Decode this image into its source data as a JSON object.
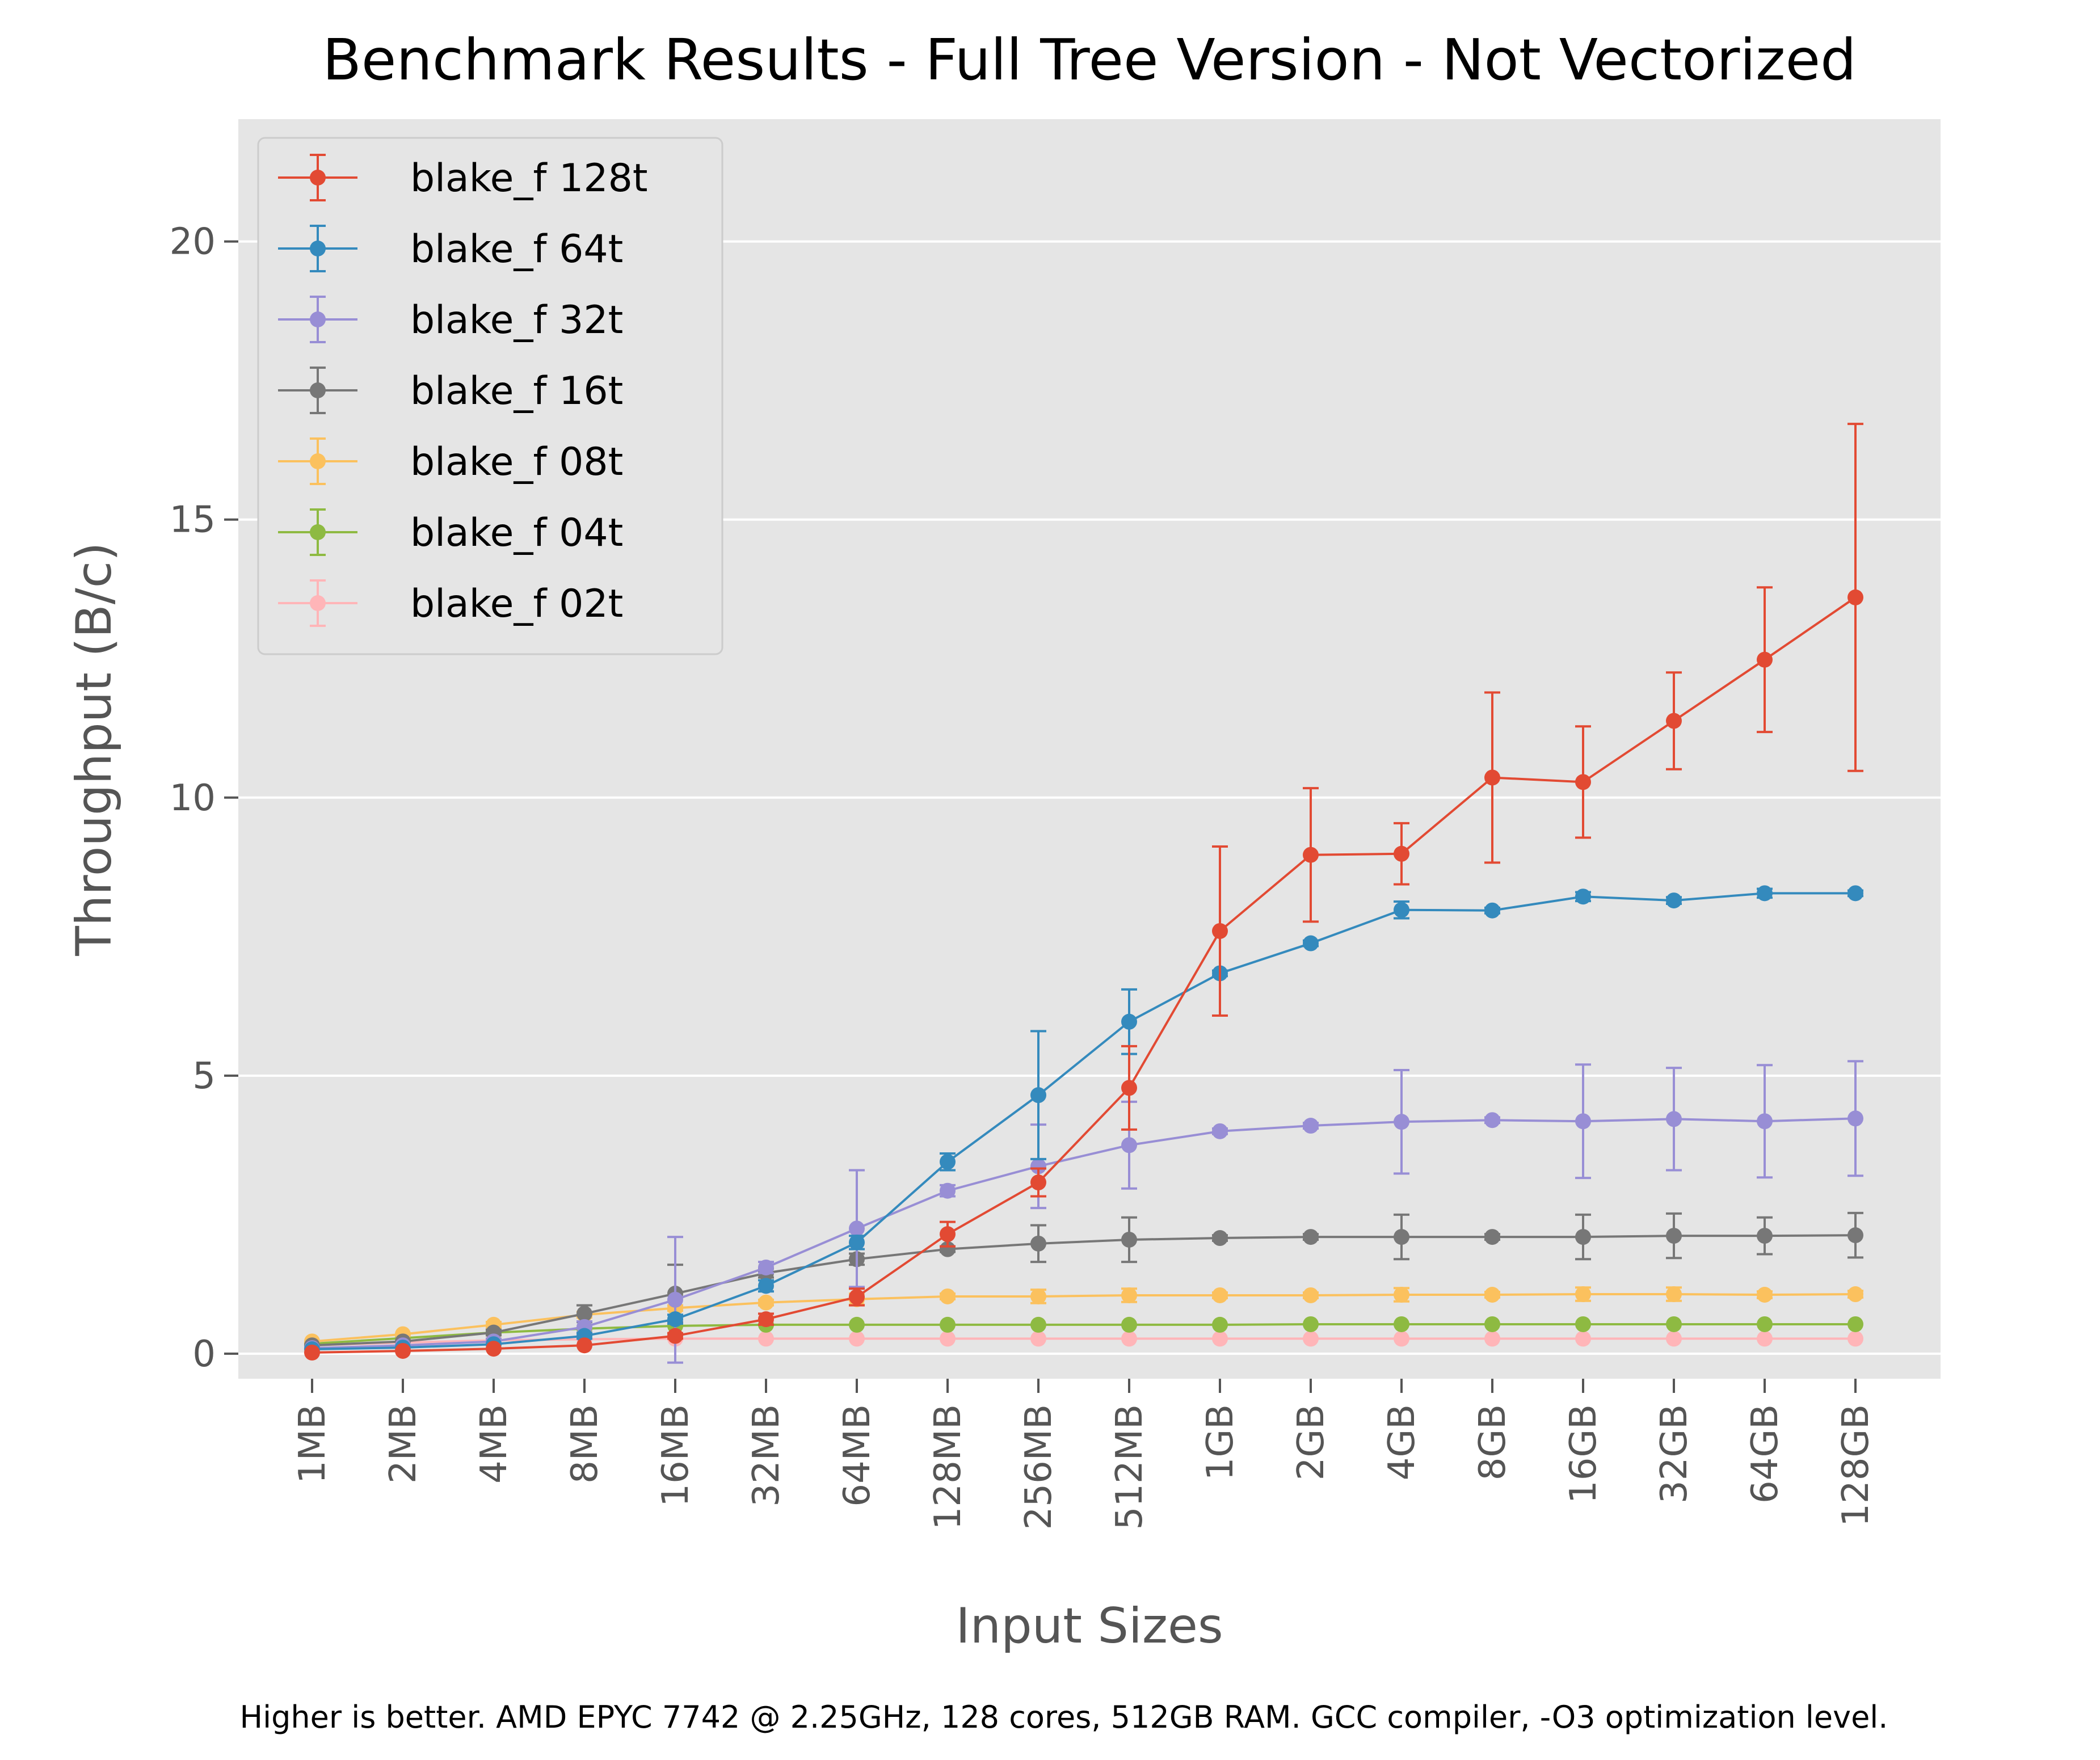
{
  "chart_data": {
    "type": "line",
    "title": "Benchmark Results - Full Tree Version - Not Vectorized",
    "xlabel": "Input Sizes",
    "ylabel": "Throughput (B/c)",
    "footnote": "Higher is better. AMD EPYC 7742 @ 2.25GHz, 128 cores, 512GB RAM. GCC compiler, -O3 optimization level.",
    "categories": [
      "1MB",
      "2MB",
      "4MB",
      "8MB",
      "16MB",
      "32MB",
      "64MB",
      "128MB",
      "256MB",
      "512MB",
      "1GB",
      "2GB",
      "4GB",
      "8GB",
      "16GB",
      "32GB",
      "64GB",
      "128GB"
    ],
    "ylim": [
      -0.45,
      22.2
    ],
    "yticks": [
      0,
      5,
      10,
      15,
      20
    ],
    "grid": true,
    "legend": "upper-left",
    "series": [
      {
        "name": "blake_f 128t",
        "color": "#E24A33",
        "values": [
          0.02,
          0.05,
          0.09,
          0.15,
          0.32,
          0.62,
          1.02,
          2.15,
          3.08,
          4.78,
          7.6,
          8.97,
          8.99,
          10.36,
          10.28,
          11.38,
          12.48,
          13.6
        ],
        "errors": [
          0.01,
          0.02,
          0.03,
          0.04,
          0.05,
          0.1,
          0.15,
          0.22,
          0.25,
          0.75,
          1.52,
          1.2,
          0.55,
          1.53,
          1.0,
          0.87,
          1.3,
          3.12
        ]
      },
      {
        "name": "blake_f 64t",
        "color": "#348ABD",
        "values": [
          0.08,
          0.11,
          0.17,
          0.32,
          0.62,
          1.22,
          2.0,
          3.45,
          4.65,
          5.97,
          6.84,
          7.38,
          7.98,
          7.97,
          8.22,
          8.15,
          8.28,
          8.28
        ],
        "errors": [
          0.02,
          0.02,
          0.03,
          0.05,
          0.08,
          0.1,
          0.12,
          0.15,
          1.15,
          0.58,
          0.05,
          0.05,
          0.15,
          0.05,
          0.08,
          0.06,
          0.08,
          0.05
        ]
      },
      {
        "name": "blake_f 32t",
        "color": "#988ED5",
        "values": [
          0.1,
          0.15,
          0.22,
          0.48,
          0.97,
          1.55,
          2.25,
          2.93,
          3.37,
          3.75,
          4.0,
          4.1,
          4.17,
          4.2,
          4.18,
          4.22,
          4.18,
          4.23
        ],
        "errors": [
          0.03,
          0.03,
          0.05,
          0.1,
          1.13,
          0.1,
          1.05,
          0.1,
          0.75,
          0.78,
          0.05,
          0.05,
          0.93,
          0.05,
          1.02,
          0.92,
          1.01,
          1.03
        ]
      },
      {
        "name": "blake_f 16t",
        "color": "#777777",
        "values": [
          0.15,
          0.22,
          0.38,
          0.72,
          1.08,
          1.45,
          1.7,
          1.88,
          1.98,
          2.05,
          2.08,
          2.1,
          2.1,
          2.1,
          2.1,
          2.12,
          2.12,
          2.13
        ],
        "errors": [
          0.02,
          0.03,
          0.05,
          0.15,
          0.52,
          0.08,
          0.1,
          0.05,
          0.33,
          0.4,
          0.05,
          0.05,
          0.4,
          0.05,
          0.4,
          0.4,
          0.33,
          0.4
        ]
      },
      {
        "name": "blake_f 08t",
        "color": "#FBC15E",
        "values": [
          0.22,
          0.35,
          0.52,
          0.7,
          0.82,
          0.92,
          0.98,
          1.03,
          1.03,
          1.05,
          1.05,
          1.05,
          1.06,
          1.06,
          1.07,
          1.07,
          1.06,
          1.07
        ],
        "errors": [
          0.03,
          0.04,
          0.05,
          0.05,
          0.05,
          0.05,
          0.1,
          0.05,
          0.12,
          0.12,
          0.05,
          0.05,
          0.12,
          0.05,
          0.12,
          0.12,
          0.06,
          0.06
        ]
      },
      {
        "name": "blake_f 04t",
        "color": "#8EBA42",
        "values": [
          0.18,
          0.28,
          0.38,
          0.45,
          0.5,
          0.52,
          0.52,
          0.52,
          0.52,
          0.52,
          0.52,
          0.53,
          0.53,
          0.53,
          0.53,
          0.53,
          0.53,
          0.53
        ],
        "errors": [
          0.02,
          0.03,
          0.03,
          0.03,
          0.03,
          0.03,
          0.03,
          0.03,
          0.03,
          0.03,
          0.03,
          0.03,
          0.03,
          0.03,
          0.03,
          0.03,
          0.03,
          0.03
        ]
      },
      {
        "name": "blake_f 02t",
        "color": "#FFB5B8",
        "values": [
          0.15,
          0.2,
          0.24,
          0.26,
          0.27,
          0.27,
          0.27,
          0.27,
          0.27,
          0.27,
          0.27,
          0.27,
          0.27,
          0.27,
          0.27,
          0.27,
          0.27,
          0.27
        ],
        "errors": [
          0.02,
          0.02,
          0.02,
          0.02,
          0.02,
          0.02,
          0.02,
          0.02,
          0.02,
          0.02,
          0.02,
          0.02,
          0.02,
          0.02,
          0.02,
          0.02,
          0.02,
          0.02
        ]
      }
    ]
  }
}
